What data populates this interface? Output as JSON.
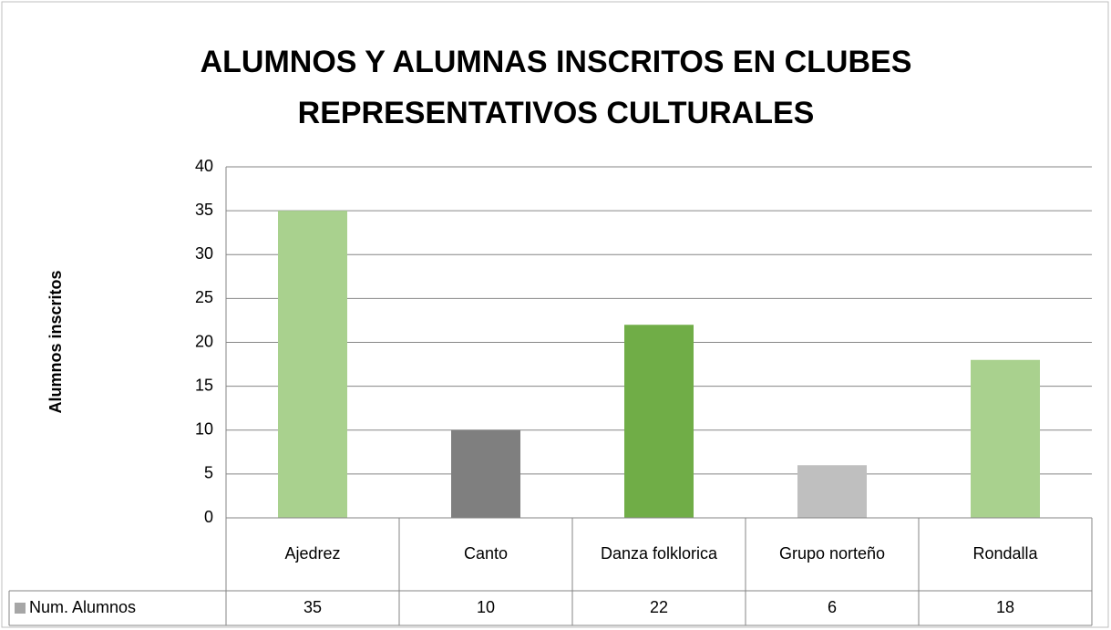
{
  "chart_data": {
    "type": "bar",
    "title": "ALUMNOS Y ALUMNAS INSCRITOS EN CLUBES REPRESENTATIVOS CULTURALES",
    "y_label": "Alumnos inscritos",
    "categories": [
      "Ajedrez",
      "Canto",
      "Danza folklorica",
      "Grupo norteño",
      "Rondalla"
    ],
    "series": [
      {
        "name": "Num. Alumnos",
        "color": "#a6a6a6",
        "values": [
          35,
          10,
          22,
          6,
          18
        ],
        "colors": [
          "#a9d18e",
          "#7f7f7f",
          "#70ad47",
          "#bfbfbf",
          "#a9d18e"
        ]
      }
    ],
    "ylim": [
      0,
      40
    ],
    "yticks": [
      0,
      5,
      10,
      15,
      20,
      25,
      30,
      35,
      40
    ],
    "grid": true,
    "data_table": true
  }
}
